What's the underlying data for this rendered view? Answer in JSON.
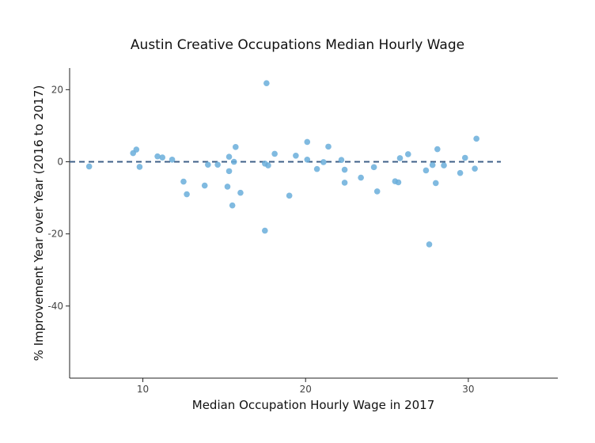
{
  "chart_data": {
    "type": "scatter",
    "title": "Austin Creative Occupations Median Hourly Wage",
    "xlabel": "Median Occupation Hourly Wage in 2017",
    "ylabel": "% Improvement Year over Year (2016 to 2017)",
    "xlim": [
      5.5,
      35.5
    ],
    "ylim": [
      -60,
      26
    ],
    "xticks": [
      10,
      20,
      30
    ],
    "yticks": [
      20,
      0,
      -20,
      -40
    ],
    "grid": false,
    "reference_line": {
      "y": 0,
      "x_range": [
        5.5,
        32
      ],
      "style": "dashed",
      "color": "#3f6189"
    },
    "point_color": "#6aaedb",
    "points": [
      {
        "x": 6.7,
        "y": -1.3
      },
      {
        "x": 9.4,
        "y": 2.4
      },
      {
        "x": 9.6,
        "y": 3.4
      },
      {
        "x": 9.8,
        "y": -1.4
      },
      {
        "x": 10.9,
        "y": 1.5
      },
      {
        "x": 11.2,
        "y": 1.2
      },
      {
        "x": 11.8,
        "y": 0.6
      },
      {
        "x": 12.5,
        "y": -5.5
      },
      {
        "x": 12.7,
        "y": -9.0
      },
      {
        "x": 13.8,
        "y": -6.6
      },
      {
        "x": 14.0,
        "y": -0.8
      },
      {
        "x": 14.6,
        "y": -0.8
      },
      {
        "x": 15.2,
        "y": -6.9
      },
      {
        "x": 15.3,
        "y": 1.4
      },
      {
        "x": 15.3,
        "y": -2.6
      },
      {
        "x": 15.5,
        "y": -12.1
      },
      {
        "x": 15.6,
        "y": 0.0
      },
      {
        "x": 15.7,
        "y": 4.1
      },
      {
        "x": 16.0,
        "y": -8.6
      },
      {
        "x": 17.5,
        "y": -19.1
      },
      {
        "x": 17.6,
        "y": 21.8
      },
      {
        "x": 17.5,
        "y": -0.5
      },
      {
        "x": 17.7,
        "y": -1.0
      },
      {
        "x": 18.1,
        "y": 2.2
      },
      {
        "x": 19.0,
        "y": -9.4
      },
      {
        "x": 19.4,
        "y": 1.7
      },
      {
        "x": 20.1,
        "y": 5.5
      },
      {
        "x": 20.1,
        "y": 0.6
      },
      {
        "x": 20.7,
        "y": -2.0
      },
      {
        "x": 21.1,
        "y": -0.1
      },
      {
        "x": 21.4,
        "y": 4.2
      },
      {
        "x": 22.2,
        "y": 0.5
      },
      {
        "x": 22.4,
        "y": -2.2
      },
      {
        "x": 22.4,
        "y": -5.8
      },
      {
        "x": 23.4,
        "y": -4.4
      },
      {
        "x": 24.2,
        "y": -1.5
      },
      {
        "x": 24.4,
        "y": -8.2
      },
      {
        "x": 25.5,
        "y": -5.4
      },
      {
        "x": 25.7,
        "y": -5.7
      },
      {
        "x": 25.8,
        "y": 1.0
      },
      {
        "x": 26.3,
        "y": 2.1
      },
      {
        "x": 27.4,
        "y": -2.4
      },
      {
        "x": 27.6,
        "y": -22.9
      },
      {
        "x": 27.8,
        "y": -0.9
      },
      {
        "x": 28.0,
        "y": -5.9
      },
      {
        "x": 28.1,
        "y": 3.5
      },
      {
        "x": 28.5,
        "y": -1.0
      },
      {
        "x": 29.5,
        "y": -3.1
      },
      {
        "x": 29.8,
        "y": 1.1
      },
      {
        "x": 30.4,
        "y": -1.9
      },
      {
        "x": 30.5,
        "y": 6.4
      }
    ]
  }
}
